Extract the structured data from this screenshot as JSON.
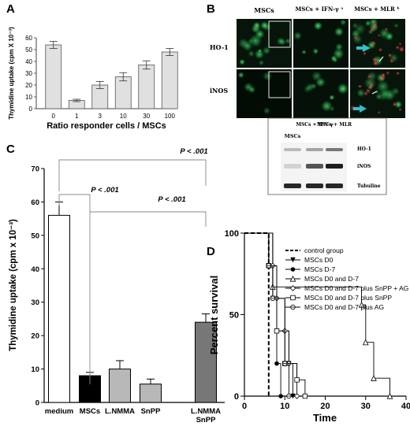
{
  "panel_labels": {
    "a": "A",
    "b": "B",
    "c": "C",
    "d": "D"
  },
  "colors": {
    "bar_a": "#e0e0e0",
    "bar_dark": "#777777",
    "mic_green": "#1fa24a",
    "mic_red": "#c43a3a",
    "arrow_cyan": "#34c0c8"
  },
  "chart_data": [
    {
      "id": "A",
      "type": "bar",
      "ylabel": "Thymidine uptake (cpm X 10⁻³)",
      "xlabel": "Ratio responder cells / MSCs",
      "categories": [
        "0",
        "1",
        "3",
        "10",
        "30",
        "100"
      ],
      "values": [
        54,
        7,
        20,
        27,
        37,
        48
      ],
      "errors": [
        3,
        1,
        3,
        3.5,
        3.5,
        3
      ],
      "ylim": [
        0,
        60
      ],
      "yticks": [
        "0",
        "10",
        "20",
        "30",
        "40",
        "50",
        "60"
      ]
    },
    {
      "id": "C",
      "type": "bar",
      "ylabel": "Thymidine uptake (cpm x 10⁻³)",
      "categories": [
        "medium",
        "MSCs",
        "L.NMMA",
        "SnPP",
        "L.NMMA SnPP"
      ],
      "values": [
        56,
        8,
        10,
        5.5,
        24
      ],
      "errors": [
        4,
        1,
        2.5,
        1.5,
        2.5
      ],
      "fills": [
        "#ffffff",
        "#000000",
        "#b8b8b8",
        "#b8b8b8",
        "#777777"
      ],
      "ylim": [
        0,
        70
      ],
      "yticks": [
        "0",
        "10",
        "20",
        "30",
        "40",
        "50",
        "60",
        "70"
      ],
      "annotations": [
        "P < .001",
        "P < .001",
        "P < .001"
      ]
    },
    {
      "id": "D",
      "type": "line",
      "ylabel": "Percent survival",
      "xlabel": "Time",
      "xlim": [
        0,
        40
      ],
      "ylim": [
        0,
        100
      ],
      "xticks": [
        "0",
        "10",
        "20",
        "30",
        "40"
      ],
      "yticks": [
        "0",
        "50",
        "100"
      ],
      "series": [
        {
          "name": "control group",
          "marker": "none",
          "dash": true,
          "points": [
            [
              0,
              100
            ],
            [
              6,
              100
            ],
            [
              6,
              0
            ]
          ]
        },
        {
          "name": "MSCs D0",
          "marker": "tri-down",
          "points": [
            [
              0,
              100
            ],
            [
              6,
              100
            ],
            [
              6,
              80
            ],
            [
              7,
              80
            ],
            [
              7,
              60
            ],
            [
              8,
              60
            ],
            [
              8,
              40
            ],
            [
              11,
              40
            ],
            [
              11,
              20
            ],
            [
              12,
              20
            ],
            [
              12,
              0
            ]
          ]
        },
        {
          "name": "MSCs D-7",
          "marker": "dot",
          "points": [
            [
              0,
              100
            ],
            [
              7,
              100
            ],
            [
              7,
              60
            ],
            [
              8,
              60
            ],
            [
              8,
              20
            ],
            [
              9,
              20
            ],
            [
              9,
              0
            ],
            [
              10,
              0
            ]
          ]
        },
        {
          "name": "MSCs D0  and  D-7",
          "marker": "tri-up",
          "points": [
            [
              0,
              100
            ],
            [
              7,
              100
            ],
            [
              7,
              67
            ],
            [
              29,
              67
            ],
            [
              29,
              56
            ],
            [
              30,
              56
            ],
            [
              30,
              33
            ],
            [
              32,
              33
            ],
            [
              32,
              11
            ],
            [
              36,
              11
            ],
            [
              36,
              0
            ]
          ]
        },
        {
          "name": "MSCs D0 and D-7 plus SnPP + AG",
          "marker": "diamond",
          "points": [
            [
              0,
              100
            ],
            [
              7,
              100
            ],
            [
              7,
              80
            ],
            [
              8,
              80
            ],
            [
              8,
              60
            ],
            [
              10,
              60
            ],
            [
              10,
              40
            ],
            [
              11,
              40
            ],
            [
              11,
              20
            ],
            [
              13,
              20
            ],
            [
              13,
              0
            ]
          ]
        },
        {
          "name": "MSCs D0 and D-7 plus SnPP",
          "marker": "square",
          "points": [
            [
              0,
              100
            ],
            [
              6,
              100
            ],
            [
              6,
              80
            ],
            [
              8,
              80
            ],
            [
              8,
              40
            ],
            [
              10,
              40
            ],
            [
              10,
              20
            ],
            [
              13,
              20
            ],
            [
              13,
              10
            ],
            [
              15,
              10
            ],
            [
              15,
              0
            ]
          ]
        },
        {
          "name": "MSCs D0 and D-7 plus AG",
          "marker": "circle-line",
          "points": [
            [
              0,
              100
            ],
            [
              6,
              100
            ],
            [
              6,
              80
            ],
            [
              7,
              80
            ],
            [
              7,
              60
            ],
            [
              10,
              60
            ],
            [
              10,
              20
            ],
            [
              11,
              20
            ],
            [
              11,
              0
            ]
          ]
        }
      ]
    }
  ],
  "micro": {
    "col_labels": [
      "MSCs",
      "MSCs + IFN-γ ᵃ",
      "MSCs + MLR ᵇ"
    ],
    "row_labels": [
      "HO-1",
      "iNOS"
    ]
  },
  "western": {
    "col_labels": [
      "MSCs",
      "MSCs + IFN-γ",
      "MSCs + MLR"
    ],
    "row_labels": [
      "HO-1",
      "iNOS",
      "Tubuline"
    ]
  }
}
